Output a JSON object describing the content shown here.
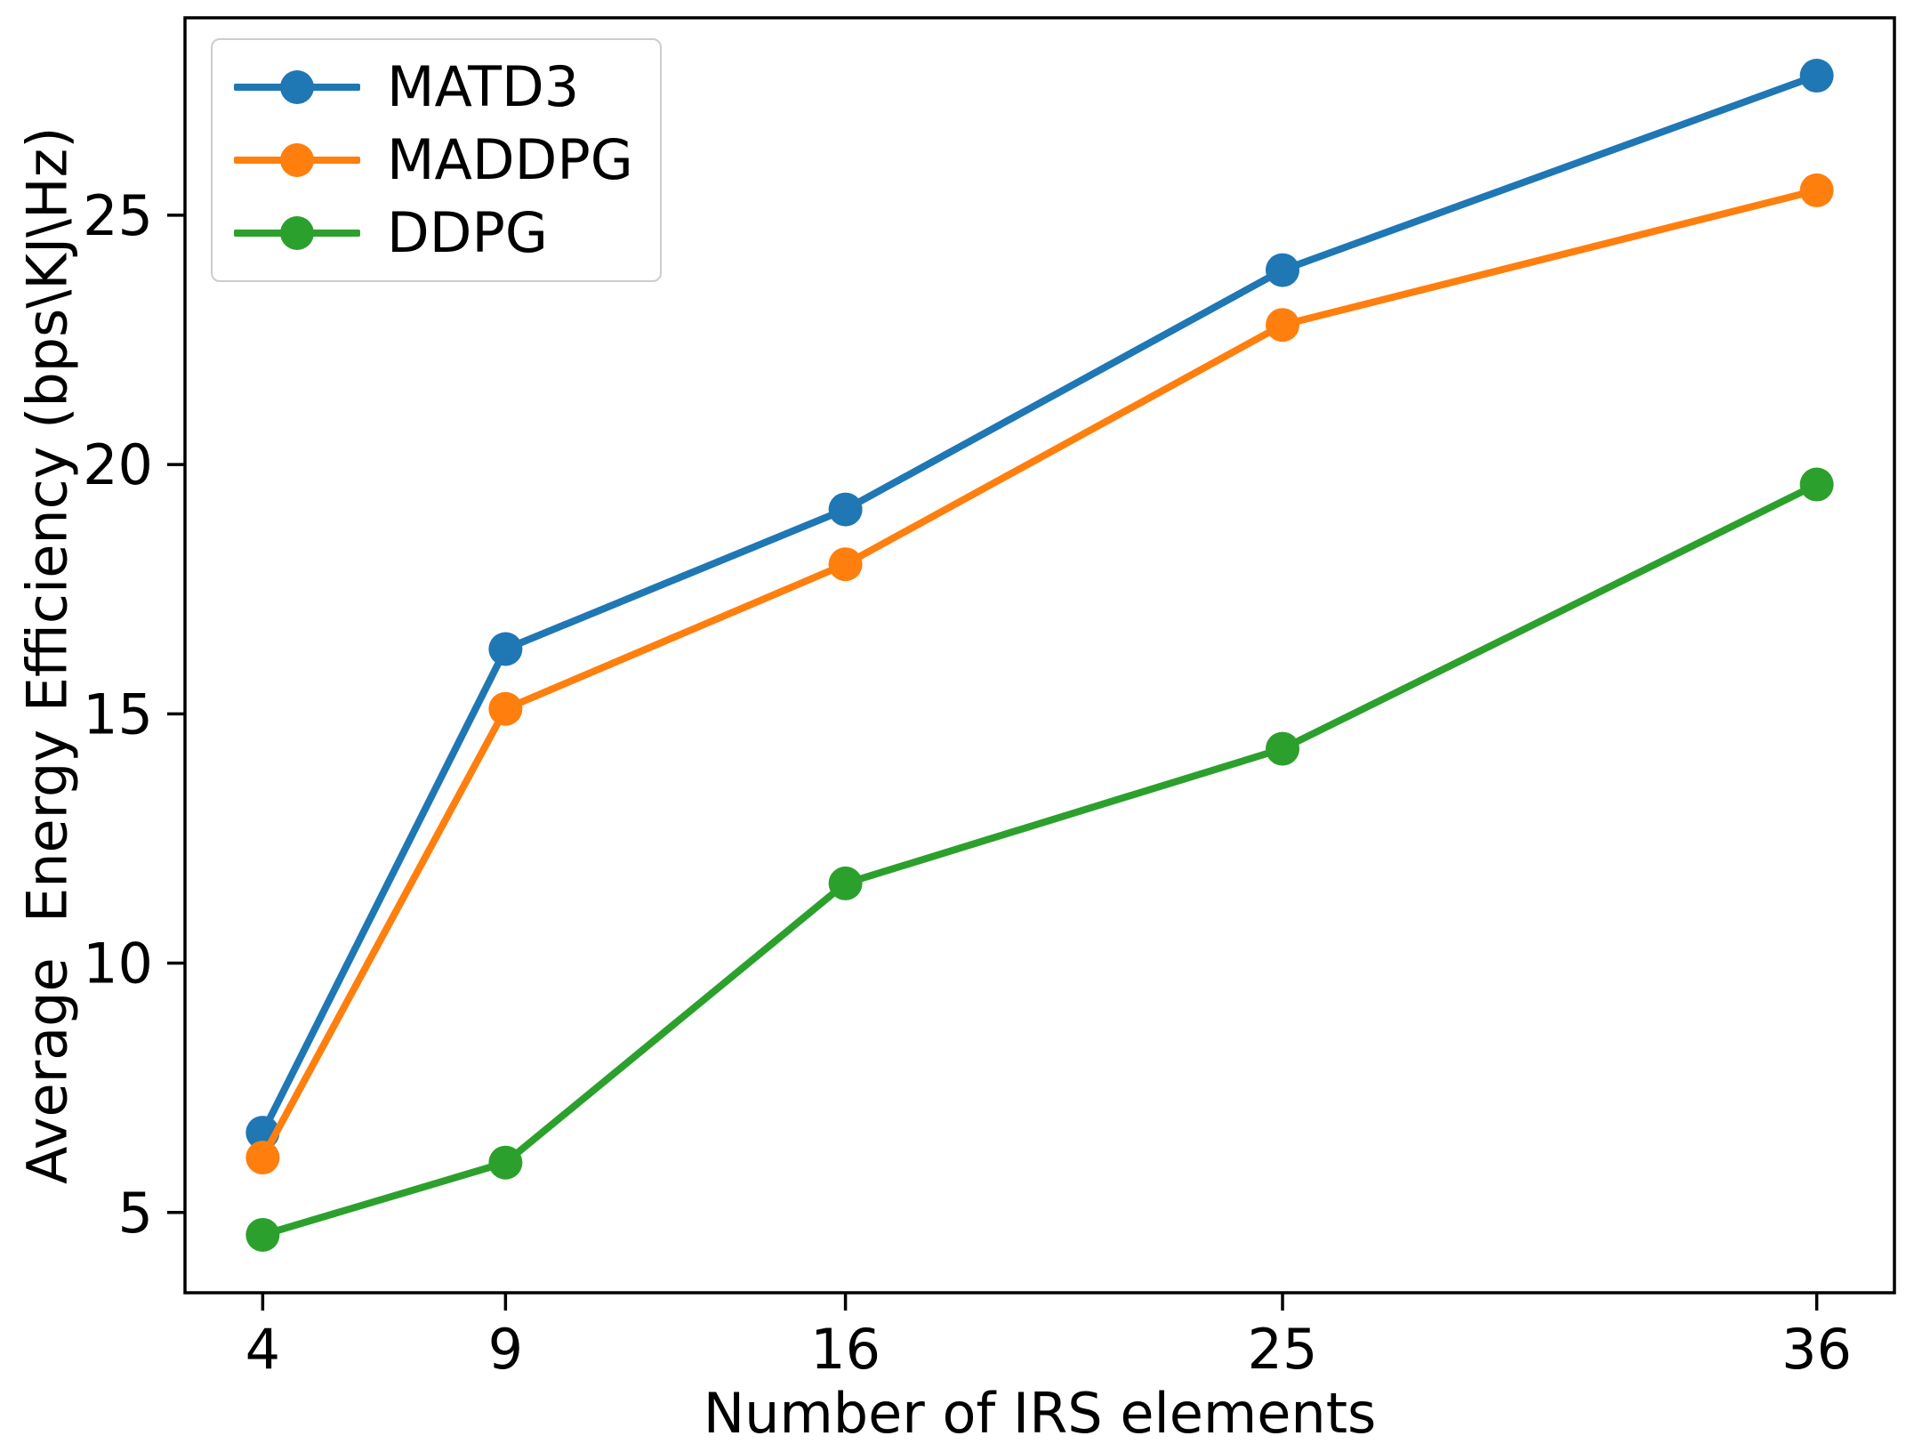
{
  "chart_data": {
    "type": "line",
    "title": "",
    "xlabel": "Number of IRS elements",
    "ylabel": "Average  Energy Efficiency (bps\\KJ\\Hz)",
    "x": [
      4,
      9,
      16,
      25,
      36
    ],
    "xticks": [
      "4",
      "9",
      "16",
      "25",
      "36"
    ],
    "yticks": [
      5,
      10,
      15,
      20,
      25
    ],
    "xlim": [
      2.4,
      37.6
    ],
    "ylim": [
      3.39,
      28.96
    ],
    "grid": false,
    "legend_position": "upper left",
    "marker": "circle",
    "series": [
      {
        "name": "MATD3",
        "color": "#1f77b4",
        "values": [
          6.6,
          16.3,
          19.1,
          23.9,
          27.8
        ]
      },
      {
        "name": "MADDPG",
        "color": "#ff7f0e",
        "values": [
          6.1,
          15.1,
          18.0,
          22.8,
          25.5
        ]
      },
      {
        "name": "DDPG",
        "color": "#2ca02c",
        "values": [
          4.55,
          6.0,
          11.6,
          14.3,
          19.6
        ]
      }
    ]
  }
}
